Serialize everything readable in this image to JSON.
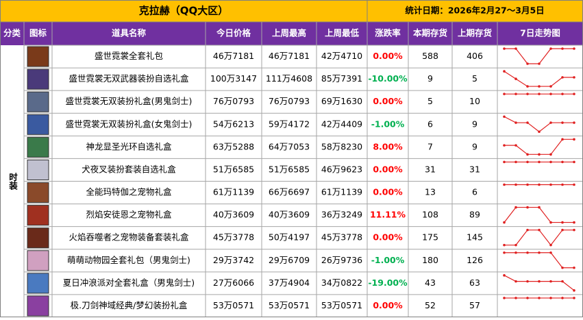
{
  "header": {
    "title": "克拉赫（QQ大区）",
    "date": "统计日期：2026年2月27～3月5日"
  },
  "table": {
    "columns": [
      "分类",
      "图标",
      "道具名称",
      "今日价格",
      "上周最高",
      "上周最低",
      "涨跌率",
      "本期存货",
      "上期存货",
      "7日走势图"
    ],
    "category": "时装",
    "rows": [
      {
        "name": "盛世霓裳全套礼包",
        "today": "46万7181",
        "high": "46万7181",
        "low": "42万4710",
        "change": "0.00%",
        "stock": 588,
        "prev_stock": 406,
        "trend": [
          1,
          1,
          0,
          0,
          1,
          1,
          1
        ]
      },
      {
        "name": "盛世霓裳无双武器装扮自选礼盒",
        "today": "100万3147",
        "high": "111万4608",
        "low": "85万7391",
        "change": "-10.00%",
        "stock": 9,
        "prev_stock": 5,
        "trend": [
          1,
          0.5,
          0,
          0,
          0,
          0.6,
          0.6
        ]
      },
      {
        "name": "盛世霓裳无双装扮礼盒(男鬼剑士)",
        "today": "76万0793",
        "high": "76万0793",
        "low": "69万1630",
        "change": "0.00%",
        "stock": 5,
        "prev_stock": 10,
        "trend": [
          1,
          1,
          1,
          1,
          1,
          1,
          1
        ]
      },
      {
        "name": "盛世霓裳无双装扮礼盒(女鬼剑士)",
        "today": "54万6213",
        "high": "59万4172",
        "low": "42万4409",
        "change": "-1.00%",
        "stock": 6,
        "prev_stock": 9,
        "trend": [
          1,
          0.6,
          0.6,
          0,
          0.6,
          0.6,
          0.6
        ]
      },
      {
        "name": "神龙显圣光环自选礼盒",
        "today": "63万5288",
        "high": "64万7053",
        "low": "58万8230",
        "change": "8.00%",
        "stock": 7,
        "prev_stock": 9,
        "trend": [
          0.6,
          0.6,
          0,
          0,
          0,
          1,
          1
        ]
      },
      {
        "name": "犬夜叉装扮套装自选礼盒",
        "today": "51万6585",
        "high": "51万6585",
        "low": "46万9623",
        "change": "0.00%",
        "stock": 31,
        "prev_stock": 31,
        "trend": [
          1,
          1,
          1,
          1,
          1,
          1,
          1
        ]
      },
      {
        "name": "全能玛特伽之宠物礼盒",
        "today": "61万1139",
        "high": "66万6697",
        "low": "61万1139",
        "change": "0.00%",
        "stock": 13,
        "prev_stock": 6,
        "trend": [
          1,
          1,
          1,
          1,
          1,
          1,
          1
        ]
      },
      {
        "name": "烈焰安徒恩之宠物礼盒",
        "today": "40万3609",
        "high": "40万3609",
        "low": "36万3249",
        "change": "11.11%",
        "stock": 108,
        "prev_stock": 89,
        "trend": [
          0,
          1,
          1,
          1,
          0,
          0,
          0
        ]
      },
      {
        "name": "火焰吞噬者之宠物装备套装礼盒",
        "today": "45万3778",
        "high": "50万4197",
        "low": "45万3778",
        "change": "0.00%",
        "stock": 175,
        "prev_stock": 145,
        "trend": [
          0,
          0,
          1,
          1,
          0,
          1,
          1
        ]
      },
      {
        "name": "萌萌动物园全套礼包（男鬼剑士)",
        "today": "29万3742",
        "high": "29万6709",
        "low": "26万9736",
        "change": "-1.00%",
        "stock": 180,
        "prev_stock": 126,
        "trend": [
          1,
          1,
          1,
          1,
          1,
          0,
          0
        ]
      },
      {
        "name": "夏日冲浪派对全套礼盒（男鬼剑士)",
        "today": "27万6066",
        "high": "37万4904",
        "low": "34万0822",
        "change": "-19.00%",
        "stock": 43,
        "prev_stock": 63,
        "trend": [
          1,
          0.6,
          0.6,
          0.6,
          0.6,
          0.6,
          0
        ]
      },
      {
        "name": "极.刀剑神域经典/梦幻装扮礼盒",
        "today": "53万0571",
        "high": "53万0571",
        "low": "53万0571",
        "change": "0.00%",
        "stock": 52,
        "prev_stock": 57,
        "trend": [
          1,
          1,
          1,
          1,
          1,
          1,
          1
        ]
      }
    ]
  }
}
